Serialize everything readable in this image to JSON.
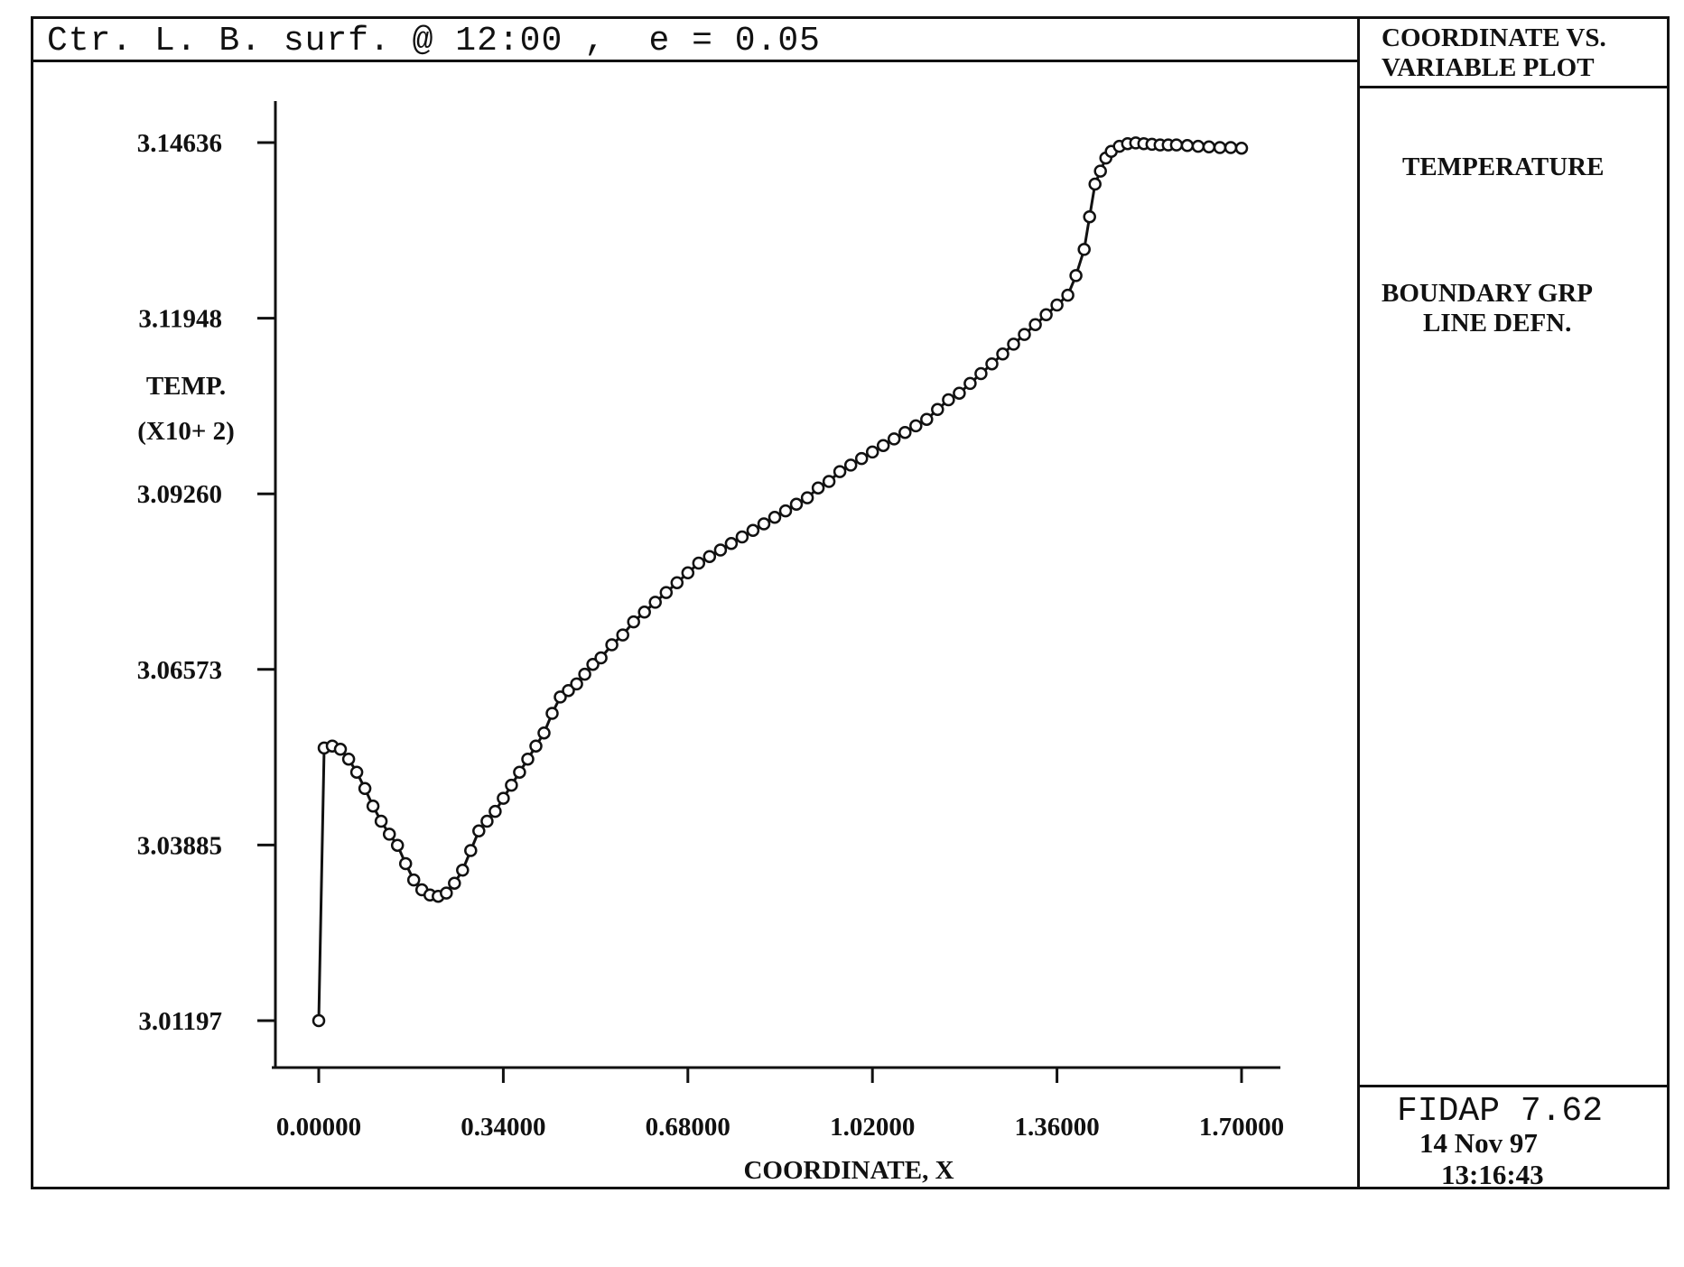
{
  "header": {
    "title": "Ctr. L. B. surf. @ 12:00 ,  e = 0.05"
  },
  "side_panel": {
    "heading_line1": "COORDINATE VS.",
    "heading_line2": "VARIABLE PLOT",
    "variable": "TEMPERATURE",
    "group_line1": "BOUNDARY GRP",
    "group_line2": "LINE DEFN.",
    "software": "FIDAP 7.62",
    "date": "14 Nov 97",
    "time": "13:16:43"
  },
  "chart_data": {
    "type": "line",
    "xlabel": "COORDINATE, X",
    "ylabel": "TEMP.",
    "ylabel_scale": "(X10+ 2)",
    "xlim": [
      0.0,
      1.7
    ],
    "ylim": [
      3.01197,
      3.14636
    ],
    "x_ticks": [
      "0.00000",
      "0.34000",
      "0.68000",
      "1.02000",
      "1.36000",
      "1.70000"
    ],
    "y_ticks": [
      "3.01197",
      "3.03885",
      "3.06573",
      "3.09260",
      "3.11948",
      "3.14636"
    ],
    "marker": "open-circle",
    "series": [
      {
        "x": [
          0.0,
          0.01,
          0.025,
          0.04,
          0.055,
          0.07,
          0.085,
          0.1,
          0.115,
          0.13,
          0.145,
          0.16,
          0.175,
          0.19,
          0.205,
          0.22,
          0.235,
          0.25,
          0.265,
          0.28,
          0.295,
          0.31,
          0.325,
          0.34,
          0.355,
          0.37,
          0.385,
          0.4,
          0.415,
          0.43,
          0.445,
          0.46,
          0.475,
          0.49,
          0.505,
          0.52,
          0.54,
          0.56,
          0.58,
          0.6,
          0.62,
          0.64,
          0.66,
          0.68,
          0.7,
          0.72,
          0.74,
          0.76,
          0.78,
          0.8,
          0.82,
          0.84,
          0.86,
          0.88,
          0.9,
          0.92,
          0.94,
          0.96,
          0.98,
          1.0,
          1.02,
          1.04,
          1.06,
          1.08,
          1.1,
          1.12,
          1.14,
          1.16,
          1.18,
          1.2,
          1.22,
          1.24,
          1.26,
          1.28,
          1.3,
          1.32,
          1.34,
          1.36,
          1.38,
          1.395,
          1.41,
          1.42,
          1.43,
          1.44,
          1.45,
          1.46,
          1.475,
          1.49,
          1.505,
          1.52,
          1.535,
          1.55,
          1.565,
          1.58,
          1.6,
          1.62,
          1.64,
          1.66,
          1.68,
          1.7
        ],
        "y": [
          3.01197,
          3.0537,
          3.054,
          3.0535,
          3.052,
          3.05,
          3.0475,
          3.0448,
          3.0425,
          3.0405,
          3.0388,
          3.036,
          3.0335,
          3.032,
          3.0312,
          3.031,
          3.0315,
          3.033,
          3.035,
          3.038,
          3.041,
          3.0425,
          3.044,
          3.046,
          3.048,
          3.05,
          3.052,
          3.054,
          3.056,
          3.059,
          3.0615,
          3.0625,
          3.0635,
          3.065,
          3.0665,
          3.0675,
          3.0695,
          3.071,
          3.073,
          3.0745,
          3.076,
          3.0775,
          3.079,
          3.0805,
          3.082,
          3.083,
          3.084,
          3.085,
          3.086,
          3.087,
          3.088,
          3.089,
          3.09,
          3.091,
          3.092,
          3.0935,
          3.0945,
          3.096,
          3.097,
          3.098,
          3.099,
          3.1,
          3.101,
          3.102,
          3.103,
          3.104,
          3.1055,
          3.107,
          3.108,
          3.1095,
          3.111,
          3.1125,
          3.114,
          3.1155,
          3.117,
          3.1185,
          3.12,
          3.1215,
          3.123,
          3.126,
          3.13,
          3.135,
          3.14,
          3.142,
          3.144,
          3.145,
          3.1458,
          3.1462,
          3.1463,
          3.1462,
          3.1461,
          3.146,
          3.146,
          3.146,
          3.1459,
          3.1458,
          3.1457,
          3.1456,
          3.1456,
          3.1455
        ]
      }
    ]
  }
}
